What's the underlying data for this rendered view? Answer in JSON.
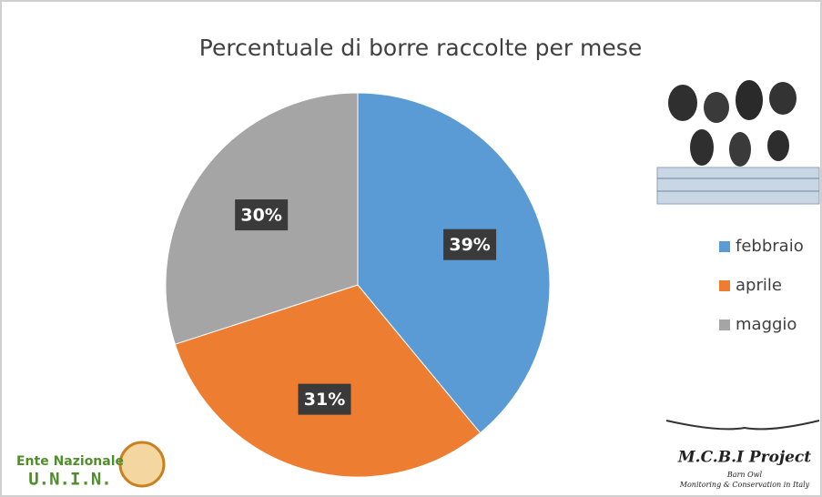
{
  "chart_data": {
    "type": "pie",
    "title": "Percentuale di borre raccolte per mese",
    "categories": [
      "febbraio",
      "aprile",
      "maggio"
    ],
    "values": [
      39,
      31,
      30
    ],
    "value_labels": [
      "39%",
      "31%",
      "30%"
    ],
    "colors": [
      "#5b9bd5",
      "#ed7d31",
      "#a5a5a5"
    ],
    "legend": "right"
  },
  "logos": {
    "left": [
      "Ente Nazionale",
      "U.N.I.N."
    ],
    "right": [
      "M.C.B.I Project",
      "Barn Owl",
      "Monitoring & Conservation in Italy"
    ]
  }
}
